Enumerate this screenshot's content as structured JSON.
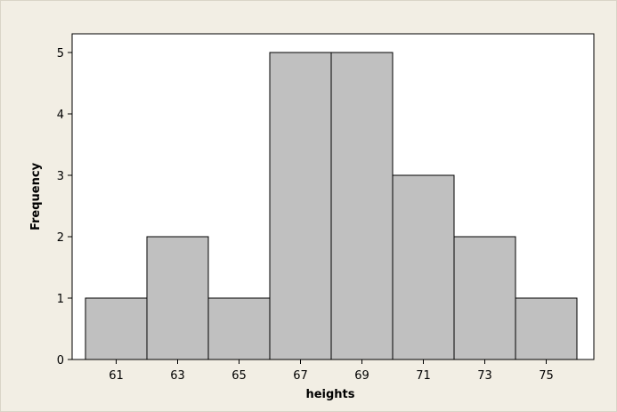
{
  "chart_data": {
    "type": "bar",
    "title": "",
    "xlabel": "heights",
    "ylabel": "Frequency",
    "categories": [
      "61",
      "63",
      "65",
      "67",
      "69",
      "71",
      "73",
      "75"
    ],
    "values": [
      1,
      2,
      1,
      5,
      5,
      3,
      2,
      1
    ],
    "bin_width": 2,
    "xlim": [
      60,
      76
    ],
    "ylim": [
      0,
      5.5
    ],
    "yticks": [
      0,
      1,
      2,
      3,
      4,
      5
    ],
    "grid": false,
    "legend": "none",
    "colors": {
      "bar_fill": "#c0c0c0",
      "bar_stroke": "#000000",
      "plot_background": "#ffffff",
      "page_background": "#f2eee4"
    }
  }
}
